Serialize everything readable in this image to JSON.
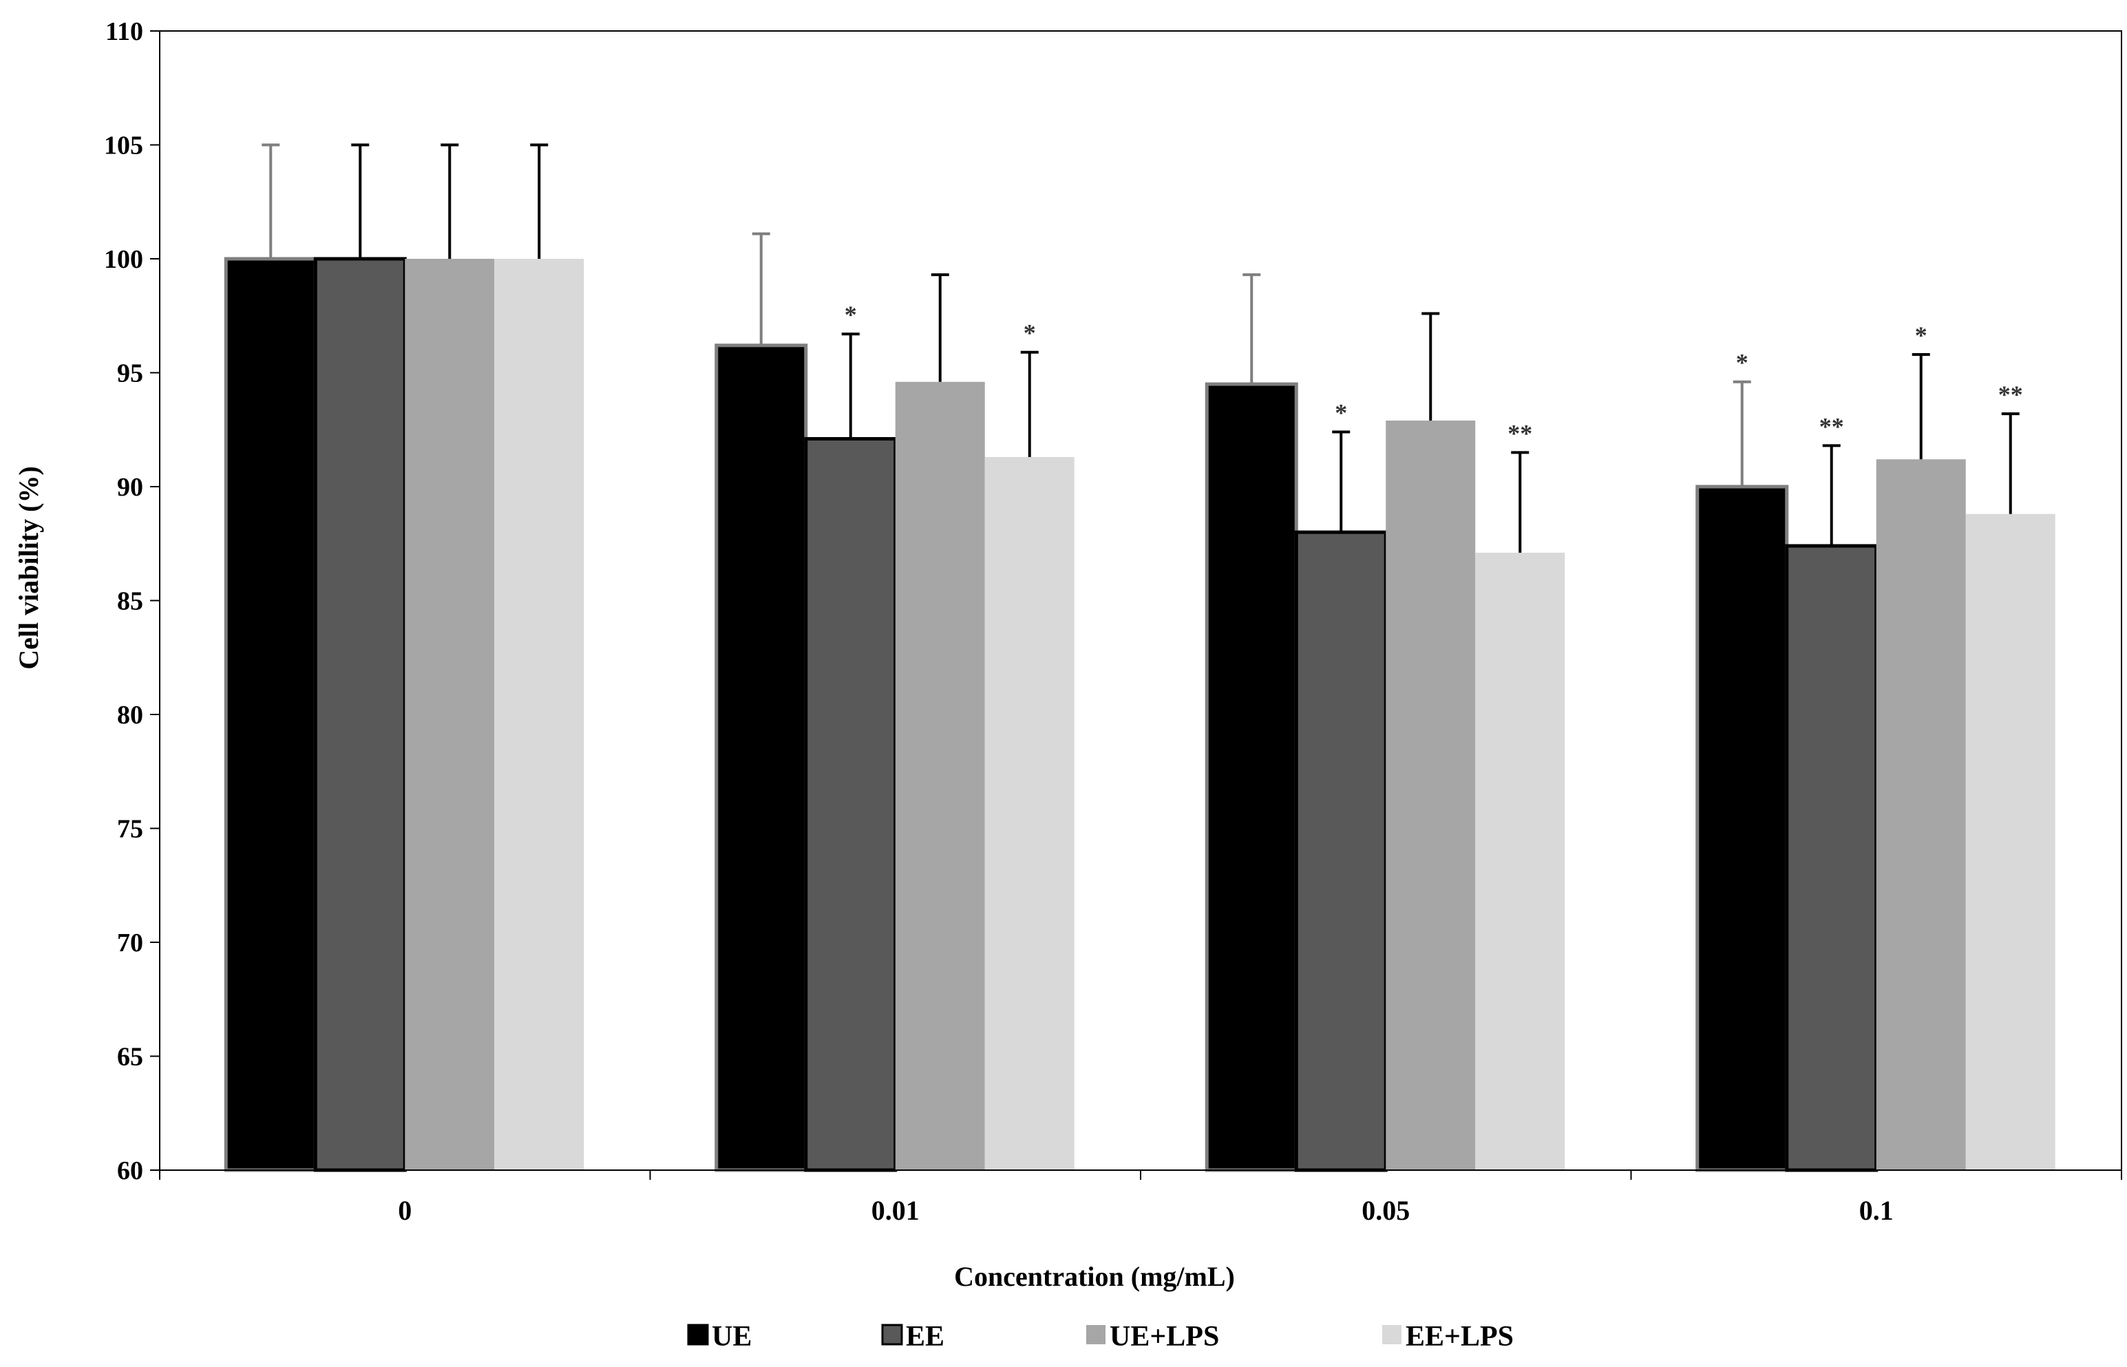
{
  "chart_data": {
    "type": "bar",
    "title": "",
    "xlabel": "Concentration (mg/mL)",
    "ylabel": "Cell viability (%)",
    "categories": [
      "0",
      "0.01",
      "0.05",
      "0.1"
    ],
    "ylim": [
      60,
      110
    ],
    "yticks": [
      60,
      65,
      70,
      75,
      80,
      85,
      90,
      95,
      100,
      105,
      110
    ],
    "grid": false,
    "legend_position": "bottom",
    "series": [
      {
        "name": "UE",
        "color": "#000000",
        "outline": "#7f7f7f",
        "values": [
          100.0,
          96.2,
          94.5,
          90.0
        ],
        "errors": [
          5.0,
          4.9,
          4.8,
          4.6
        ],
        "significance": [
          "",
          "",
          "",
          "*"
        ]
      },
      {
        "name": "EE",
        "color": "#595959",
        "outline": "#000000",
        "values": [
          100.0,
          92.1,
          88.0,
          87.4
        ],
        "errors": [
          5.0,
          4.6,
          4.4,
          4.4
        ],
        "significance": [
          "",
          "*",
          "*",
          "**"
        ]
      },
      {
        "name": "UE+LPS",
        "color": "#a6a6a6",
        "outline": "",
        "values": [
          100.0,
          94.6,
          92.9,
          91.2
        ],
        "errors": [
          5.0,
          4.7,
          4.7,
          4.6
        ],
        "significance": [
          "",
          "",
          "",
          "*"
        ]
      },
      {
        "name": "EE+LPS",
        "color": "#d9d9d9",
        "outline": "",
        "values": [
          100.0,
          91.3,
          87.1,
          88.8
        ],
        "errors": [
          5.0,
          4.6,
          4.4,
          4.4
        ],
        "significance": [
          "",
          "*",
          "**",
          "**"
        ]
      }
    ]
  }
}
